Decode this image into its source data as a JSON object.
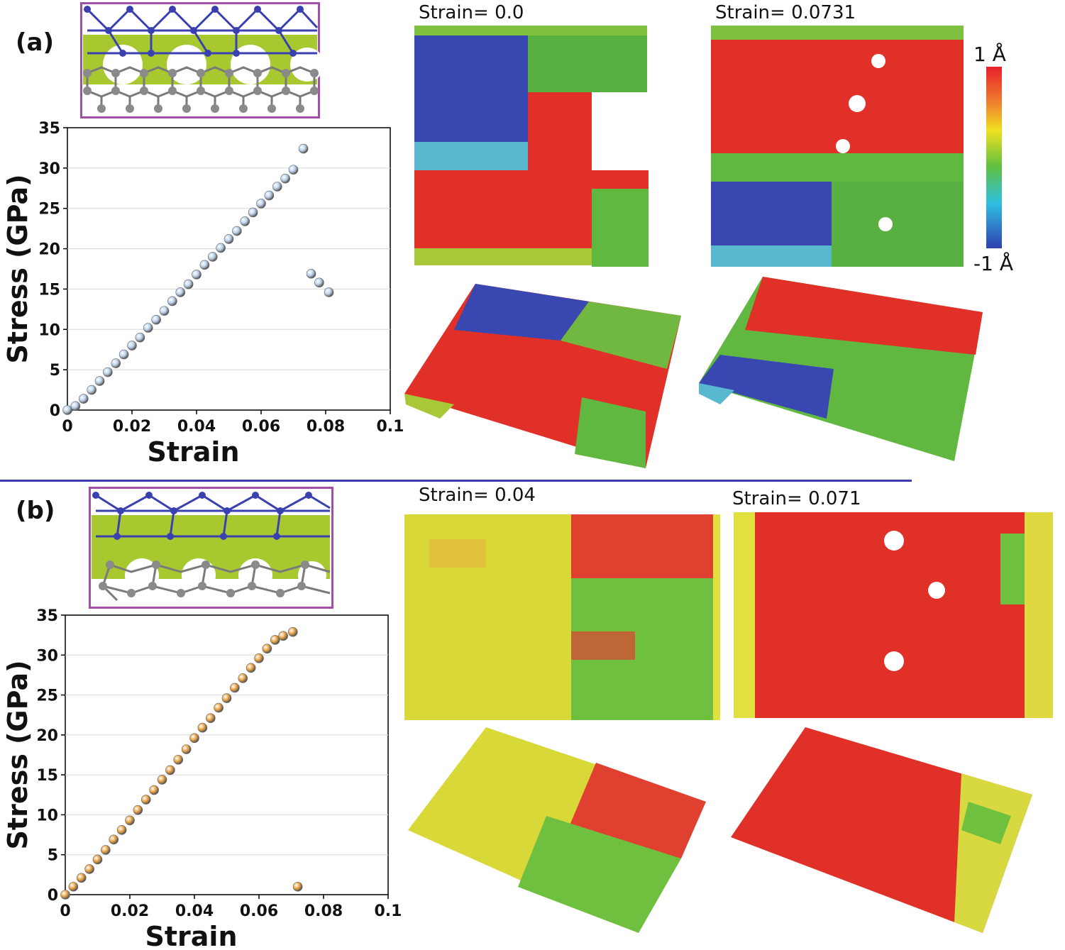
{
  "panels": {
    "a": {
      "label": "(a)",
      "structure_titles": [
        "Strain= 0.0",
        "Strain= 0.0731"
      ],
      "colorbar": {
        "max_label": "1 Å",
        "min_label": "-1 Å"
      }
    },
    "b": {
      "label": "(b)",
      "structure_titles": [
        "Strain= 0.04",
        "Strain= 0.071"
      ]
    }
  },
  "chart_data": [
    {
      "type": "scatter",
      "title": "",
      "xlabel": "Strain",
      "ylabel": "Stress (GPa)",
      "xlim": [
        0,
        0.1
      ],
      "ylim": [
        0,
        35
      ],
      "xticks": [
        "0",
        "0.02",
        "0.04",
        "0.06",
        "0.08",
        "0.1"
      ],
      "yticks": [
        "0",
        "5",
        "10",
        "15",
        "20",
        "25",
        "30",
        "35"
      ],
      "grid": "horizontal",
      "marker_color": "#b8cfe8",
      "x": [
        0.0,
        0.0025,
        0.005,
        0.0075,
        0.01,
        0.0125,
        0.015,
        0.0175,
        0.02,
        0.0225,
        0.025,
        0.0275,
        0.03,
        0.0325,
        0.035,
        0.0375,
        0.04,
        0.0425,
        0.045,
        0.0475,
        0.05,
        0.0525,
        0.055,
        0.0575,
        0.06,
        0.0625,
        0.065,
        0.0675,
        0.07,
        0.0731,
        0.0755,
        0.078,
        0.081
      ],
      "y": [
        0.0,
        0.5,
        1.4,
        2.5,
        3.6,
        4.7,
        5.8,
        6.9,
        8.0,
        9.0,
        10.2,
        11.2,
        12.3,
        13.5,
        14.6,
        15.6,
        16.8,
        18.0,
        19.0,
        20.1,
        21.2,
        22.2,
        23.4,
        24.5,
        25.6,
        26.6,
        27.7,
        28.7,
        29.8,
        32.4,
        16.9,
        15.8,
        14.6
      ]
    },
    {
      "type": "scatter",
      "title": "",
      "xlabel": "Strain",
      "ylabel": "Stress (GPa)",
      "xlim": [
        0,
        0.1
      ],
      "ylim": [
        0,
        35
      ],
      "xticks": [
        "0",
        "0.02",
        "0.04",
        "0.06",
        "0.08",
        "0.1"
      ],
      "yticks": [
        "0",
        "5",
        "10",
        "15",
        "20",
        "25",
        "30",
        "35"
      ],
      "grid": "horizontal",
      "marker_color": "#e8a040",
      "x": [
        0.0,
        0.0025,
        0.005,
        0.0075,
        0.01,
        0.0125,
        0.015,
        0.0175,
        0.02,
        0.0225,
        0.025,
        0.0275,
        0.03,
        0.0325,
        0.035,
        0.0375,
        0.04,
        0.0425,
        0.045,
        0.0475,
        0.05,
        0.0525,
        0.055,
        0.0575,
        0.06,
        0.0625,
        0.065,
        0.0675,
        0.0705,
        0.072
      ],
      "y": [
        0.0,
        1.0,
        2.1,
        3.2,
        4.4,
        5.6,
        6.9,
        8.1,
        9.3,
        10.6,
        11.9,
        13.1,
        14.4,
        15.6,
        16.9,
        18.2,
        19.6,
        20.9,
        22.1,
        23.4,
        24.6,
        25.9,
        27.1,
        28.4,
        29.6,
        30.8,
        31.9,
        32.4,
        32.9,
        1.0
      ]
    }
  ]
}
